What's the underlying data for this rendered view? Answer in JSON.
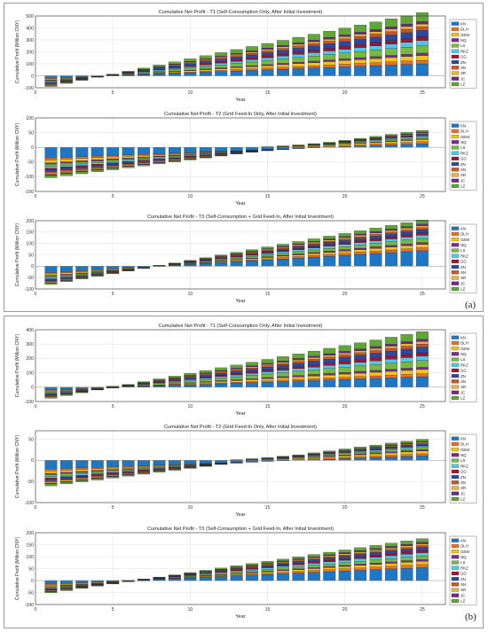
{
  "figure": {
    "panel_labels": [
      "(a)",
      "(b)"
    ]
  },
  "colors": {
    "KN": "#1f77c4",
    "DLH": "#e8702a",
    "GEM": "#f0c419",
    "NQ": "#7b2c8f",
    "LS": "#77b843",
    "RKZ": "#52c6ea",
    "GG": "#a2142f",
    "ZN": "#2b4a9e",
    "SN": "#c8552b",
    "SR": "#e6b33e",
    "JC": "#6e2a84",
    "LZ": "#5fa538"
  },
  "chart_data": [
    {
      "type": "bar",
      "stacked": true,
      "title": "Cumulative Net Profit - T1 (Self-Consumption Only, After Initial Investment)",
      "xlabel": "Year",
      "ylabel": "Cumulative Profit (Million CNY)",
      "xlim": [
        0,
        26.5
      ],
      "ylim": [
        -100,
        500
      ],
      "xticks": [
        0,
        5,
        10,
        15,
        20,
        25
      ],
      "yticks": [
        -100,
        0,
        100,
        200,
        300,
        400,
        500
      ],
      "grid": true,
      "legend_position": "right",
      "legend": [
        "KN",
        "DLH",
        "GEM",
        "NQ",
        "LS",
        "RKZ",
        "GG",
        "ZN",
        "SN",
        "SR",
        "JC",
        "LZ"
      ],
      "series": [
        {
          "name": "KN",
          "initial": -25,
          "annual": 5
        },
        {
          "name": "DLH",
          "initial": -8,
          "annual": 1.5
        },
        {
          "name": "GEM",
          "initial": -10,
          "annual": 2
        },
        {
          "name": "NQ",
          "initial": -5,
          "annual": 1
        },
        {
          "name": "LS",
          "initial": -12,
          "annual": 3
        },
        {
          "name": "RKZ",
          "initial": -8,
          "annual": 2
        },
        {
          "name": "GG",
          "initial": -6,
          "annual": 1.5
        },
        {
          "name": "ZN",
          "initial": -10,
          "annual": 2.5
        },
        {
          "name": "SN",
          "initial": -7,
          "annual": 1.5
        },
        {
          "name": "SR",
          "initial": -6,
          "annual": 1.2
        },
        {
          "name": "JC",
          "initial": -4,
          "annual": 1
        },
        {
          "name": "LZ",
          "initial": -14,
          "annual": 3.5
        }
      ]
    },
    {
      "type": "bar",
      "stacked": true,
      "title": "Cumulative Net Profit - T2 (Grid Feed-In Only, After Initial Investment)",
      "xlabel": "Year",
      "ylabel": "Cumulative Profit (Million CNY)",
      "xlim": [
        0,
        26.5
      ],
      "ylim": [
        -150,
        100
      ],
      "xticks": [
        0,
        5,
        10,
        15,
        20,
        25
      ],
      "yticks": [
        -150,
        -100,
        -50,
        0,
        50,
        100
      ],
      "grid": true,
      "legend_position": "right",
      "legend": [
        "KN",
        "DLH",
        "GEM",
        "NQ",
        "LS",
        "RKZ",
        "GG",
        "ZN",
        "SN",
        "SR",
        "JC",
        "LZ"
      ],
      "series": [
        {
          "name": "KN",
          "initial": -38,
          "annual": 2
        },
        {
          "name": "DLH",
          "initial": -8,
          "annual": 0.6
        },
        {
          "name": "GEM",
          "initial": -10,
          "annual": 0.7
        },
        {
          "name": "NQ",
          "initial": -5,
          "annual": 0.3
        },
        {
          "name": "LS",
          "initial": -8,
          "annual": 0.55
        },
        {
          "name": "RKZ",
          "initial": -7,
          "annual": 0.45
        },
        {
          "name": "GG",
          "initial": -5,
          "annual": 0.3
        },
        {
          "name": "ZN",
          "initial": -7,
          "annual": 0.4
        },
        {
          "name": "SN",
          "initial": -5,
          "annual": 0.3
        },
        {
          "name": "SR",
          "initial": -5,
          "annual": 0.3
        },
        {
          "name": "JC",
          "initial": -4,
          "annual": 0.25
        },
        {
          "name": "LZ",
          "initial": -8,
          "annual": 0.55
        }
      ]
    },
    {
      "type": "bar",
      "stacked": true,
      "title": "Cumulative Net Profit - T3 (Self-Consumption + Grid Feed-In, After Initial Investment)",
      "xlabel": "Year",
      "ylabel": "Cumulative Profit (Million CNY)",
      "xlim": [
        0,
        26.5
      ],
      "ylim": [
        -100,
        200
      ],
      "xticks": [
        0,
        5,
        10,
        15,
        20,
        25
      ],
      "yticks": [
        -100,
        -50,
        0,
        50,
        100,
        150,
        200
      ],
      "grid": true,
      "legend_position": "right",
      "legend": [
        "KN",
        "DLH",
        "GEM",
        "NQ",
        "LS",
        "RKZ",
        "GG",
        "ZN",
        "SN",
        "SR",
        "JC",
        "LZ"
      ],
      "series": [
        {
          "name": "KN",
          "initial": -32,
          "annual": 4
        },
        {
          "name": "DLH",
          "initial": -7,
          "annual": 0.8
        },
        {
          "name": "GEM",
          "initial": -8,
          "annual": 0.9
        },
        {
          "name": "NQ",
          "initial": -4,
          "annual": 0.5
        },
        {
          "name": "LS",
          "initial": -7,
          "annual": 1
        },
        {
          "name": "RKZ",
          "initial": -6,
          "annual": 0.8
        },
        {
          "name": "GG",
          "initial": -4,
          "annual": 0.6
        },
        {
          "name": "ZN",
          "initial": -6,
          "annual": 0.8
        },
        {
          "name": "SN",
          "initial": -4,
          "annual": 0.5
        },
        {
          "name": "SR",
          "initial": -4,
          "annual": 0.5
        },
        {
          "name": "JC",
          "initial": -3,
          "annual": 0.4
        },
        {
          "name": "LZ",
          "initial": -7,
          "annual": 1
        }
      ]
    },
    {
      "type": "bar",
      "stacked": true,
      "title": "Cumulative Net Profit - T1 (Self-Consumption Only, After Initial Investment)",
      "xlabel": "Year",
      "ylabel": "Cumulative Profit (Million CNY)",
      "xlim": [
        0,
        26.5
      ],
      "ylim": [
        -100,
        400
      ],
      "xticks": [
        0,
        5,
        10,
        15,
        20,
        25
      ],
      "yticks": [
        -100,
        0,
        100,
        200,
        300,
        400
      ],
      "grid": true,
      "legend_position": "right",
      "legend": [
        "KN",
        "DLH",
        "GEM",
        "NQ",
        "LS",
        "RKZ",
        "GG",
        "ZN",
        "SN",
        "SR",
        "JC",
        "LZ"
      ],
      "series": [
        {
          "name": "KN",
          "initial": -22,
          "annual": 3.8
        },
        {
          "name": "DLH",
          "initial": -7,
          "annual": 1.1
        },
        {
          "name": "GEM",
          "initial": -8,
          "annual": 1.5
        },
        {
          "name": "NQ",
          "initial": -4,
          "annual": 0.8
        },
        {
          "name": "LS",
          "initial": -10,
          "annual": 2.3
        },
        {
          "name": "RKZ",
          "initial": -7,
          "annual": 1.5
        },
        {
          "name": "GG",
          "initial": -5,
          "annual": 1.1
        },
        {
          "name": "ZN",
          "initial": -8,
          "annual": 1.9
        },
        {
          "name": "SN",
          "initial": -6,
          "annual": 1.1
        },
        {
          "name": "SR",
          "initial": -5,
          "annual": 0.9
        },
        {
          "name": "JC",
          "initial": -3,
          "annual": 0.75
        },
        {
          "name": "LZ",
          "initial": -12,
          "annual": 2.6
        }
      ]
    },
    {
      "type": "bar",
      "stacked": true,
      "title": "Cumulative Net Profit - T2 (Grid Feed-In Only, After Initial Investment)",
      "xlabel": "Year",
      "ylabel": "Cumulative Profit (Million CNY)",
      "xlim": [
        0,
        26.5
      ],
      "ylim": [
        -100,
        70
      ],
      "xticks": [
        0,
        5,
        10,
        15,
        20,
        25
      ],
      "yticks": [
        -100,
        -50,
        0,
        50
      ],
      "grid": true,
      "legend_position": "right",
      "legend": [
        "KN",
        "DLH",
        "GEM",
        "NQ",
        "LS",
        "RKZ",
        "GG",
        "ZN",
        "SN",
        "SR",
        "JC",
        "LZ"
      ],
      "series": [
        {
          "name": "KN",
          "initial": -22,
          "annual": 1.3
        },
        {
          "name": "DLH",
          "initial": -5,
          "annual": 0.4
        },
        {
          "name": "GEM",
          "initial": -6,
          "annual": 0.5
        },
        {
          "name": "NQ",
          "initial": -3,
          "annual": 0.25
        },
        {
          "name": "LS",
          "initial": -5,
          "annual": 0.4
        },
        {
          "name": "RKZ",
          "initial": -4,
          "annual": 0.3
        },
        {
          "name": "GG",
          "initial": -3,
          "annual": 0.2
        },
        {
          "name": "ZN",
          "initial": -4,
          "annual": 0.3
        },
        {
          "name": "SN",
          "initial": -3,
          "annual": 0.2
        },
        {
          "name": "SR",
          "initial": -3,
          "annual": 0.2
        },
        {
          "name": "JC",
          "initial": -2,
          "annual": 0.15
        },
        {
          "name": "LZ",
          "initial": -5,
          "annual": 0.4
        }
      ]
    },
    {
      "type": "bar",
      "stacked": true,
      "title": "Cumulative Net Profit - T3 (Self-Consumption + Grid Feed-In, After Initial Investment)",
      "xlabel": "Year",
      "ylabel": "Cumulative Profit (Million CNY)",
      "xlim": [
        0,
        26.5
      ],
      "ylim": [
        -100,
        200
      ],
      "xticks": [
        0,
        5,
        10,
        15,
        20,
        25
      ],
      "yticks": [
        -100,
        -50,
        0,
        50,
        100,
        150,
        200
      ],
      "grid": true,
      "legend_position": "right",
      "legend": [
        "KN",
        "DLH",
        "GEM",
        "NQ",
        "LS",
        "RKZ",
        "GG",
        "ZN",
        "SN",
        "SR",
        "JC",
        "LZ"
      ],
      "series": [
        {
          "name": "KN",
          "initial": -18,
          "annual": 2.9
        },
        {
          "name": "DLH",
          "initial": -5,
          "annual": 0.7
        },
        {
          "name": "GEM",
          "initial": -6,
          "annual": 0.8
        },
        {
          "name": "NQ",
          "initial": -3,
          "annual": 0.4
        },
        {
          "name": "LS",
          "initial": -5,
          "annual": 0.8
        },
        {
          "name": "RKZ",
          "initial": -4,
          "annual": 0.7
        },
        {
          "name": "GG",
          "initial": -3,
          "annual": 0.5
        },
        {
          "name": "ZN",
          "initial": -4,
          "annual": 0.7
        },
        {
          "name": "SN",
          "initial": -3,
          "annual": 0.4
        },
        {
          "name": "SR",
          "initial": -3,
          "annual": 0.4
        },
        {
          "name": "JC",
          "initial": -2,
          "annual": 0.35
        },
        {
          "name": "LZ",
          "initial": -5,
          "annual": 0.8
        }
      ]
    }
  ]
}
